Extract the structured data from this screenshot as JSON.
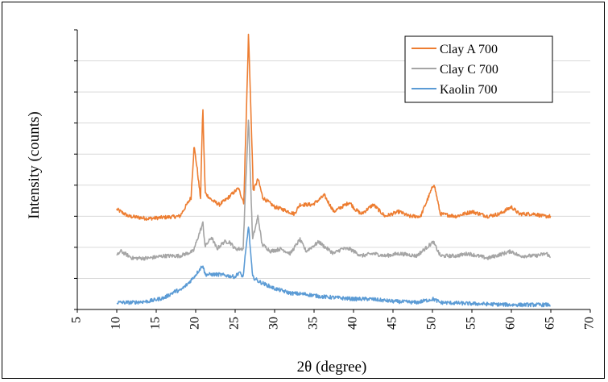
{
  "chart_data": {
    "type": "line",
    "title": "",
    "xlabel": "2θ (degree)",
    "ylabel": "Intensity (counts)",
    "xlim": [
      5,
      70
    ],
    "x_ticks": [
      "5",
      "10",
      "15",
      "20",
      "25",
      "30",
      "35",
      "40",
      "45",
      "50",
      "55",
      "60",
      "65",
      "70"
    ],
    "y_tick_labels_visible": false,
    "y_tick_count": 9,
    "grid": "horizontal",
    "legend_position": "top-right",
    "series": [
      {
        "name": "Clay A 700",
        "color": "#ED7D31",
        "peaks": [
          [
            10,
            43
          ],
          [
            11.5,
            40
          ],
          [
            14,
            39
          ],
          [
            18,
            40
          ],
          [
            19.4,
            48
          ],
          [
            19.8,
            70
          ],
          [
            20.2,
            60
          ],
          [
            20.6,
            48
          ],
          [
            20.9,
            86
          ],
          [
            21.2,
            50
          ],
          [
            22,
            47
          ],
          [
            23,
            45
          ],
          [
            23.8,
            47
          ],
          [
            25.4,
            52
          ],
          [
            26.1,
            46
          ],
          [
            26.7,
            118
          ],
          [
            27.3,
            51
          ],
          [
            27.9,
            56
          ],
          [
            28.5,
            48
          ],
          [
            30,
            44
          ],
          [
            31,
            43
          ],
          [
            32.5,
            41
          ],
          [
            33.2,
            45
          ],
          [
            34.8,
            45
          ],
          [
            35.6,
            47
          ],
          [
            36.3,
            49
          ],
          [
            37.5,
            42
          ],
          [
            39.5,
            46
          ],
          [
            40.2,
            43
          ],
          [
            41,
            41
          ],
          [
            42.5,
            45
          ],
          [
            44,
            40
          ],
          [
            45.8,
            42
          ],
          [
            47,
            40
          ],
          [
            48.5,
            40
          ],
          [
            50.2,
            54
          ],
          [
            51,
            41
          ],
          [
            53,
            40
          ],
          [
            55,
            42
          ],
          [
            57,
            40
          ],
          [
            58.5,
            41
          ],
          [
            60,
            44
          ],
          [
            61,
            41
          ],
          [
            63,
            41
          ],
          [
            64,
            40
          ],
          [
            65,
            40
          ]
        ]
      },
      {
        "name": "Clay C 700",
        "color": "#A5A5A5",
        "peaks": [
          [
            10,
            23
          ],
          [
            10.5,
            25
          ],
          [
            12,
            22
          ],
          [
            14,
            22
          ],
          [
            16,
            23
          ],
          [
            18,
            23
          ],
          [
            19.7,
            25
          ],
          [
            20.9,
            37
          ],
          [
            21.2,
            27
          ],
          [
            22,
            31
          ],
          [
            22.7,
            26
          ],
          [
            23.6,
            29
          ],
          [
            24.3,
            29
          ],
          [
            25,
            26
          ],
          [
            26,
            26
          ],
          [
            26.7,
            82
          ],
          [
            27.2,
            30
          ],
          [
            27.9,
            40
          ],
          [
            28.4,
            28
          ],
          [
            29.5,
            25
          ],
          [
            30.8,
            26
          ],
          [
            32,
            24
          ],
          [
            33.2,
            30
          ],
          [
            34,
            25
          ],
          [
            35.6,
            29
          ],
          [
            36.3,
            27
          ],
          [
            37.5,
            24
          ],
          [
            38.5,
            26
          ],
          [
            39.5,
            26
          ],
          [
            41,
            23
          ],
          [
            42.5,
            24
          ],
          [
            44,
            23
          ],
          [
            45.8,
            24
          ],
          [
            48,
            23
          ],
          [
            50.1,
            29
          ],
          [
            51,
            23
          ],
          [
            53,
            23
          ],
          [
            54.5,
            24
          ],
          [
            57,
            22
          ],
          [
            60,
            25
          ],
          [
            61,
            23
          ],
          [
            63,
            23
          ],
          [
            64.5,
            24
          ],
          [
            65,
            22
          ]
        ]
      },
      {
        "name": "Kaolin 700",
        "color": "#5B9BD5",
        "peaks": [
          [
            10,
            3
          ],
          [
            12,
            3
          ],
          [
            14,
            3.5
          ],
          [
            16,
            5
          ],
          [
            17.5,
            8
          ],
          [
            18,
            8
          ],
          [
            19,
            11
          ],
          [
            19.8,
            14
          ],
          [
            20.9,
            19
          ],
          [
            21.2,
            15
          ],
          [
            22,
            15
          ],
          [
            23,
            15
          ],
          [
            24,
            14.5
          ],
          [
            25,
            14
          ],
          [
            25.5,
            16
          ],
          [
            26,
            14
          ],
          [
            26.7,
            36
          ],
          [
            27.2,
            14
          ],
          [
            28,
            12
          ],
          [
            30,
            9
          ],
          [
            32,
            7
          ],
          [
            34,
            6.5
          ],
          [
            36,
            5.5
          ],
          [
            38,
            5
          ],
          [
            40,
            4.5
          ],
          [
            42,
            4.5
          ],
          [
            45,
            3.5
          ],
          [
            48,
            3
          ],
          [
            50.1,
            4.5
          ],
          [
            51,
            3
          ],
          [
            55,
            2.5
          ],
          [
            60,
            2
          ],
          [
            65,
            2
          ]
        ]
      }
    ]
  }
}
